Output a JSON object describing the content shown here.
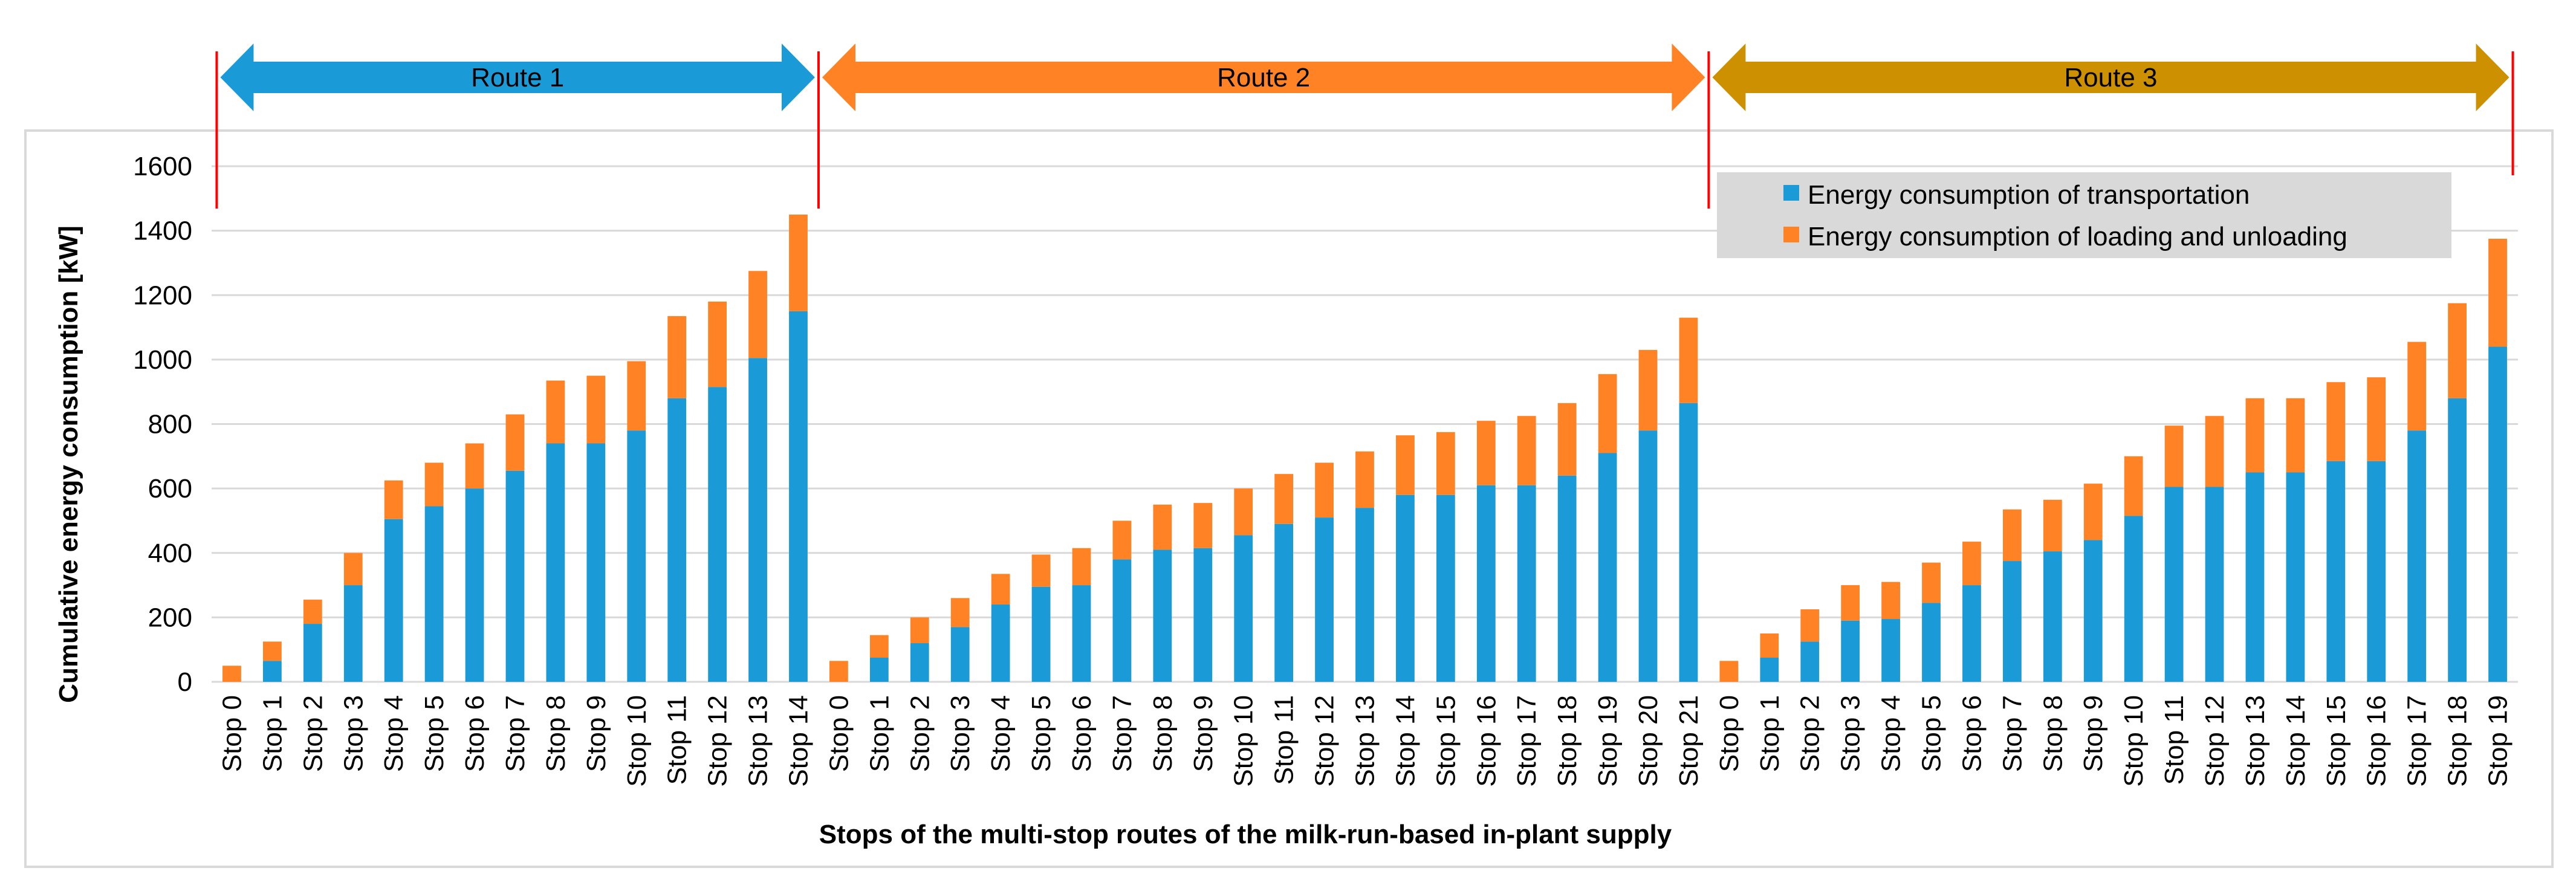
{
  "chart_data": {
    "type": "bar",
    "stacked": true,
    "xlabel": "Stops of the multi-stop routes of the milk-run-based in-plant supply",
    "ylabel": "Cumulative energy consumption [kW]",
    "ylim": [
      0,
      1600
    ],
    "yticks": [
      0,
      200,
      400,
      600,
      800,
      1000,
      1200,
      1400,
      1600
    ],
    "grid": true,
    "legend_position": "top-right",
    "colors": {
      "transport": "#1a9ad6",
      "loading": "#ff8325",
      "route1": "#1a9ad6",
      "route2": "#ff8325",
      "route3": "#cc9000",
      "divider": "#ff0000",
      "grid": "#d9d9d9",
      "frame": "#d9d9d9",
      "legend_bg": "#d9d9d9"
    },
    "series": [
      {
        "name": "Energy consumption of transportation",
        "key": "transport"
      },
      {
        "name": "Energy consumption of loading and unloading",
        "key": "loading"
      }
    ],
    "routes": [
      {
        "name": "Route 1",
        "categories": [
          "Stop 0",
          "Stop 1",
          "Stop 2",
          "Stop 3",
          "Stop 4",
          "Stop 5",
          "Stop 6",
          "Stop 7",
          "Stop 8",
          "Stop 9",
          "Stop 10",
          "Stop 11",
          "Stop 12",
          "Stop 13",
          "Stop 14"
        ],
        "transport": [
          0,
          65,
          180,
          300,
          505,
          545,
          600,
          655,
          740,
          740,
          780,
          880,
          915,
          1005,
          1150
        ],
        "loading": [
          50,
          60,
          75,
          100,
          120,
          135,
          140,
          175,
          195,
          210,
          215,
          255,
          265,
          270,
          300
        ]
      },
      {
        "name": "Route 2",
        "categories": [
          "Stop 0",
          "Stop 1",
          "Stop 2",
          "Stop 3",
          "Stop 4",
          "Stop 5",
          "Stop 6",
          "Stop 7",
          "Stop 8",
          "Stop 9",
          "Stop 10",
          "Stop 11",
          "Stop 12",
          "Stop 13",
          "Stop 14",
          "Stop 15",
          "Stop 16",
          "Stop 17",
          "Stop 18",
          "Stop 19",
          "Stop 20",
          "Stop 21"
        ],
        "transport": [
          0,
          75,
          120,
          170,
          240,
          295,
          300,
          380,
          410,
          415,
          455,
          490,
          510,
          540,
          580,
          580,
          610,
          610,
          640,
          710,
          780,
          865
        ],
        "loading": [
          65,
          70,
          80,
          90,
          95,
          100,
          115,
          120,
          140,
          140,
          145,
          155,
          170,
          175,
          185,
          195,
          200,
          215,
          225,
          245,
          250,
          265
        ]
      },
      {
        "name": "Route 3",
        "categories": [
          "Stop 0",
          "Stop 1",
          "Stop 2",
          "Stop 3",
          "Stop 4",
          "Stop 5",
          "Stop 6",
          "Stop 7",
          "Stop 8",
          "Stop 9",
          "Stop 10",
          "Stop 11",
          "Stop 12",
          "Stop 13",
          "Stop 14",
          "Stop 15",
          "Stop 16",
          "Stop 17",
          "Stop 18",
          "Stop 19"
        ],
        "transport": [
          0,
          75,
          125,
          190,
          195,
          245,
          300,
          375,
          405,
          440,
          515,
          605,
          605,
          650,
          650,
          685,
          685,
          780,
          880,
          1040
        ],
        "loading": [
          65,
          75,
          100,
          110,
          115,
          125,
          135,
          160,
          160,
          175,
          185,
          190,
          220,
          230,
          230,
          245,
          260,
          275,
          295,
          335
        ]
      }
    ]
  }
}
